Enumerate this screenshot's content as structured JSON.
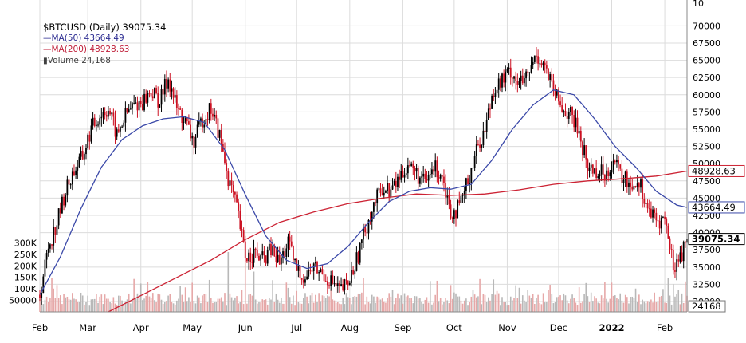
{
  "chart_data": {
    "type": "candlestick",
    "title": "$BTCUSD (Daily) 39075.34",
    "symbol": "$BTCUSD",
    "period": "Daily",
    "last_price": 39075.34,
    "x_ticks": [
      "Feb",
      "Mar",
      "Apr",
      "May",
      "Jun",
      "Jul",
      "Aug",
      "Sep",
      "Oct",
      "Nov",
      "Dec",
      "2022",
      "Feb"
    ],
    "y_ticks": [
      30000,
      32500,
      35000,
      37500,
      40000,
      42500,
      45000,
      47500,
      50000,
      52500,
      55000,
      57500,
      60000,
      62500,
      65000,
      67500,
      70000
    ],
    "top_cut_label": "10",
    "ylim": [
      28500,
      71200
    ],
    "volume_ticks": [
      "300K",
      "250K",
      "200K",
      "150K",
      "100K",
      "50000"
    ],
    "volume_ylim": [
      0,
      350000
    ],
    "series": [
      {
        "name": "MA(50)",
        "value": 43664.49,
        "value_label": "43664.49",
        "color": "#3a48a8"
      },
      {
        "name": "MA(200)",
        "value": 48928.63,
        "value_label": "48928.63",
        "color": "#cc2233"
      },
      {
        "name": "Volume",
        "value": 24168,
        "value_label": "24,168",
        "color": "#a0a0a0"
      }
    ],
    "price_label": "39075.34",
    "volume_label": "24168",
    "monthly_path": [
      [
        0,
        31000
      ],
      [
        5,
        38000
      ],
      [
        10,
        41500
      ],
      [
        15,
        46000
      ],
      [
        20,
        49000
      ],
      [
        25,
        51000
      ],
      [
        30,
        55000
      ],
      [
        35,
        57000
      ],
      [
        40,
        58000
      ],
      [
        45,
        54000
      ],
      [
        50,
        57000
      ],
      [
        55,
        58500
      ],
      [
        60,
        59000
      ],
      [
        65,
        60500
      ],
      [
        70,
        59000
      ],
      [
        75,
        62500
      ],
      [
        80,
        58000
      ],
      [
        85,
        56000
      ],
      [
        90,
        53000
      ],
      [
        95,
        56500
      ],
      [
        100,
        58000
      ],
      [
        105,
        54000
      ],
      [
        110,
        48000
      ],
      [
        115,
        43500
      ],
      [
        120,
        36500
      ],
      [
        125,
        37000
      ],
      [
        130,
        36000
      ],
      [
        135,
        37500
      ],
      [
        140,
        35500
      ],
      [
        145,
        38500
      ],
      [
        150,
        34500
      ],
      [
        155,
        33500
      ],
      [
        160,
        35000
      ],
      [
        165,
        34000
      ],
      [
        170,
        33000
      ],
      [
        175,
        31500
      ],
      [
        180,
        32500
      ],
      [
        185,
        36000
      ],
      [
        190,
        40500
      ],
      [
        195,
        44000
      ],
      [
        200,
        46500
      ],
      [
        205,
        46000
      ],
      [
        210,
        48000
      ],
      [
        215,
        50000
      ],
      [
        220,
        48500
      ],
      [
        225,
        47000
      ],
      [
        230,
        49500
      ],
      [
        235,
        48500
      ],
      [
        240,
        43000
      ],
      [
        245,
        43500
      ],
      [
        250,
        47500
      ],
      [
        255,
        52000
      ],
      [
        260,
        55000
      ],
      [
        265,
        61000
      ],
      [
        270,
        62000
      ],
      [
        275,
        63500
      ],
      [
        280,
        61500
      ],
      [
        285,
        62500
      ],
      [
        290,
        66000
      ],
      [
        295,
        64000
      ],
      [
        300,
        60500
      ],
      [
        305,
        58000
      ],
      [
        310,
        57000
      ],
      [
        315,
        54500
      ],
      [
        320,
        49500
      ],
      [
        325,
        49000
      ],
      [
        330,
        48500
      ],
      [
        335,
        50500
      ],
      [
        340,
        48000
      ],
      [
        345,
        47000
      ],
      [
        350,
        47500
      ],
      [
        355,
        43500
      ],
      [
        360,
        41500
      ],
      [
        365,
        42000
      ],
      [
        370,
        35000
      ],
      [
        375,
        37000
      ],
      [
        378,
        39075
      ]
    ],
    "ma50_path": [
      [
        0,
        31000
      ],
      [
        12,
        36500
      ],
      [
        24,
        43500
      ],
      [
        36,
        49500
      ],
      [
        48,
        53500
      ],
      [
        60,
        55500
      ],
      [
        72,
        56500
      ],
      [
        84,
        56800
      ],
      [
        96,
        56000
      ],
      [
        108,
        52000
      ],
      [
        120,
        45500
      ],
      [
        132,
        39500
      ],
      [
        144,
        36000
      ],
      [
        156,
        34800
      ],
      [
        168,
        35500
      ],
      [
        180,
        38000
      ],
      [
        192,
        41500
      ],
      [
        204,
        44500
      ],
      [
        216,
        46000
      ],
      [
        228,
        46500
      ],
      [
        240,
        46300
      ],
      [
        252,
        47000
      ],
      [
        264,
        50500
      ],
      [
        276,
        55000
      ],
      [
        288,
        58500
      ],
      [
        300,
        60700
      ],
      [
        312,
        60000
      ],
      [
        324,
        56500
      ],
      [
        336,
        52500
      ],
      [
        348,
        49500
      ],
      [
        360,
        46000
      ],
      [
        372,
        44000
      ],
      [
        378,
        43664
      ]
    ],
    "ma200_path": [
      [
        40,
        28500
      ],
      [
        60,
        31000
      ],
      [
        80,
        33500
      ],
      [
        100,
        36000
      ],
      [
        120,
        39000
      ],
      [
        140,
        41500
      ],
      [
        160,
        43000
      ],
      [
        180,
        44200
      ],
      [
        200,
        45000
      ],
      [
        220,
        45600
      ],
      [
        240,
        45400
      ],
      [
        260,
        45600
      ],
      [
        280,
        46200
      ],
      [
        300,
        47000
      ],
      [
        320,
        47500
      ],
      [
        340,
        47800
      ],
      [
        360,
        48200
      ],
      [
        378,
        48928
      ]
    ]
  }
}
